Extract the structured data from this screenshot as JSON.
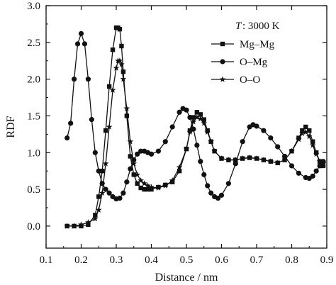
{
  "chart_data": {
    "type": "line",
    "xlabel": "Distance / nm",
    "ylabel": "RDF",
    "xlim": [
      0.1,
      0.9
    ],
    "ylim": [
      -0.3,
      3.0
    ],
    "x_ticks": [
      "0.1",
      "0.2",
      "0.3",
      "0.4",
      "0.5",
      "0.6",
      "0.7",
      "0.8",
      "0.9"
    ],
    "y_ticks": [
      "0.0",
      "0.5",
      "1.0",
      "1.5",
      "2.0",
      "2.5",
      "3.0"
    ],
    "grid": false,
    "legend": {
      "position": "top-right",
      "title_prefix": "T",
      "title_value": ":  3000 K"
    },
    "series": [
      {
        "name": "Mg–Mg",
        "marker": "square",
        "color": "#111111",
        "x": [
          0.16,
          0.18,
          0.2,
          0.22,
          0.24,
          0.25,
          0.26,
          0.27,
          0.28,
          0.29,
          0.3,
          0.305,
          0.31,
          0.315,
          0.32,
          0.33,
          0.34,
          0.35,
          0.36,
          0.37,
          0.38,
          0.39,
          0.4,
          0.42,
          0.44,
          0.46,
          0.48,
          0.5,
          0.51,
          0.52,
          0.53,
          0.54,
          0.55,
          0.56,
          0.57,
          0.58,
          0.6,
          0.62,
          0.64,
          0.66,
          0.68,
          0.7,
          0.72,
          0.74,
          0.76,
          0.78,
          0.8,
          0.82,
          0.83,
          0.84,
          0.85,
          0.86,
          0.87,
          0.88,
          0.89
        ],
        "y": [
          0.0,
          0.0,
          0.0,
          0.02,
          0.15,
          0.4,
          0.75,
          1.3,
          1.9,
          2.4,
          2.7,
          2.7,
          2.68,
          2.45,
          2.1,
          1.5,
          0.95,
          0.7,
          0.58,
          0.52,
          0.5,
          0.5,
          0.5,
          0.53,
          0.56,
          0.6,
          0.75,
          1.05,
          1.3,
          1.48,
          1.55,
          1.52,
          1.45,
          1.3,
          1.15,
          1.02,
          0.92,
          0.9,
          0.9,
          0.92,
          0.93,
          0.92,
          0.9,
          0.88,
          0.86,
          0.9,
          1.02,
          1.2,
          1.3,
          1.35,
          1.3,
          1.15,
          1.0,
          0.88,
          0.82
        ]
      },
      {
        "name": "O–Mg",
        "marker": "circle",
        "color": "#111111",
        "x": [
          0.16,
          0.17,
          0.18,
          0.19,
          0.2,
          0.21,
          0.22,
          0.23,
          0.24,
          0.25,
          0.26,
          0.27,
          0.28,
          0.29,
          0.3,
          0.31,
          0.32,
          0.33,
          0.34,
          0.35,
          0.36,
          0.37,
          0.38,
          0.39,
          0.4,
          0.42,
          0.44,
          0.46,
          0.48,
          0.49,
          0.5,
          0.51,
          0.52,
          0.53,
          0.54,
          0.55,
          0.56,
          0.57,
          0.58,
          0.59,
          0.6,
          0.62,
          0.64,
          0.66,
          0.68,
          0.69,
          0.7,
          0.72,
          0.74,
          0.76,
          0.78,
          0.8,
          0.82,
          0.84,
          0.85,
          0.86,
          0.87,
          0.88,
          0.89
        ],
        "y": [
          1.2,
          1.4,
          2.0,
          2.48,
          2.62,
          2.48,
          2.0,
          1.45,
          1.0,
          0.75,
          0.58,
          0.5,
          0.45,
          0.4,
          0.37,
          0.38,
          0.45,
          0.6,
          0.78,
          0.9,
          0.98,
          1.02,
          1.02,
          1.0,
          0.98,
          1.02,
          1.15,
          1.35,
          1.55,
          1.6,
          1.58,
          1.48,
          1.32,
          1.1,
          0.88,
          0.7,
          0.55,
          0.45,
          0.4,
          0.38,
          0.42,
          0.58,
          0.85,
          1.15,
          1.35,
          1.38,
          1.36,
          1.3,
          1.2,
          1.08,
          0.95,
          0.82,
          0.72,
          0.66,
          0.65,
          0.68,
          0.75,
          0.82,
          0.88
        ]
      },
      {
        "name": "O–O",
        "marker": "star",
        "color": "#111111",
        "x": [
          0.16,
          0.18,
          0.2,
          0.22,
          0.24,
          0.25,
          0.26,
          0.27,
          0.28,
          0.29,
          0.3,
          0.305,
          0.31,
          0.315,
          0.32,
          0.33,
          0.34,
          0.35,
          0.36,
          0.37,
          0.38,
          0.39,
          0.4,
          0.42,
          0.44,
          0.46,
          0.48,
          0.5,
          0.51,
          0.52,
          0.53,
          0.54,
          0.55,
          0.56,
          0.57,
          0.58,
          0.6,
          0.62,
          0.64,
          0.66,
          0.68,
          0.7,
          0.72,
          0.74,
          0.76,
          0.78,
          0.8,
          0.82,
          0.83,
          0.84,
          0.85,
          0.86,
          0.87,
          0.88,
          0.89
        ],
        "y": [
          0.0,
          0.0,
          0.02,
          0.05,
          0.1,
          0.22,
          0.45,
          0.85,
          1.35,
          1.85,
          2.15,
          2.25,
          2.25,
          2.2,
          2.0,
          1.6,
          1.15,
          0.85,
          0.7,
          0.62,
          0.58,
          0.55,
          0.53,
          0.52,
          0.55,
          0.62,
          0.8,
          1.05,
          1.28,
          1.42,
          1.48,
          1.46,
          1.4,
          1.28,
          1.15,
          1.02,
          0.92,
          0.9,
          0.9,
          0.92,
          0.93,
          0.92,
          0.9,
          0.88,
          0.86,
          0.9,
          1.02,
          1.18,
          1.26,
          1.28,
          1.22,
          1.1,
          0.98,
          0.88,
          0.85
        ]
      }
    ]
  }
}
